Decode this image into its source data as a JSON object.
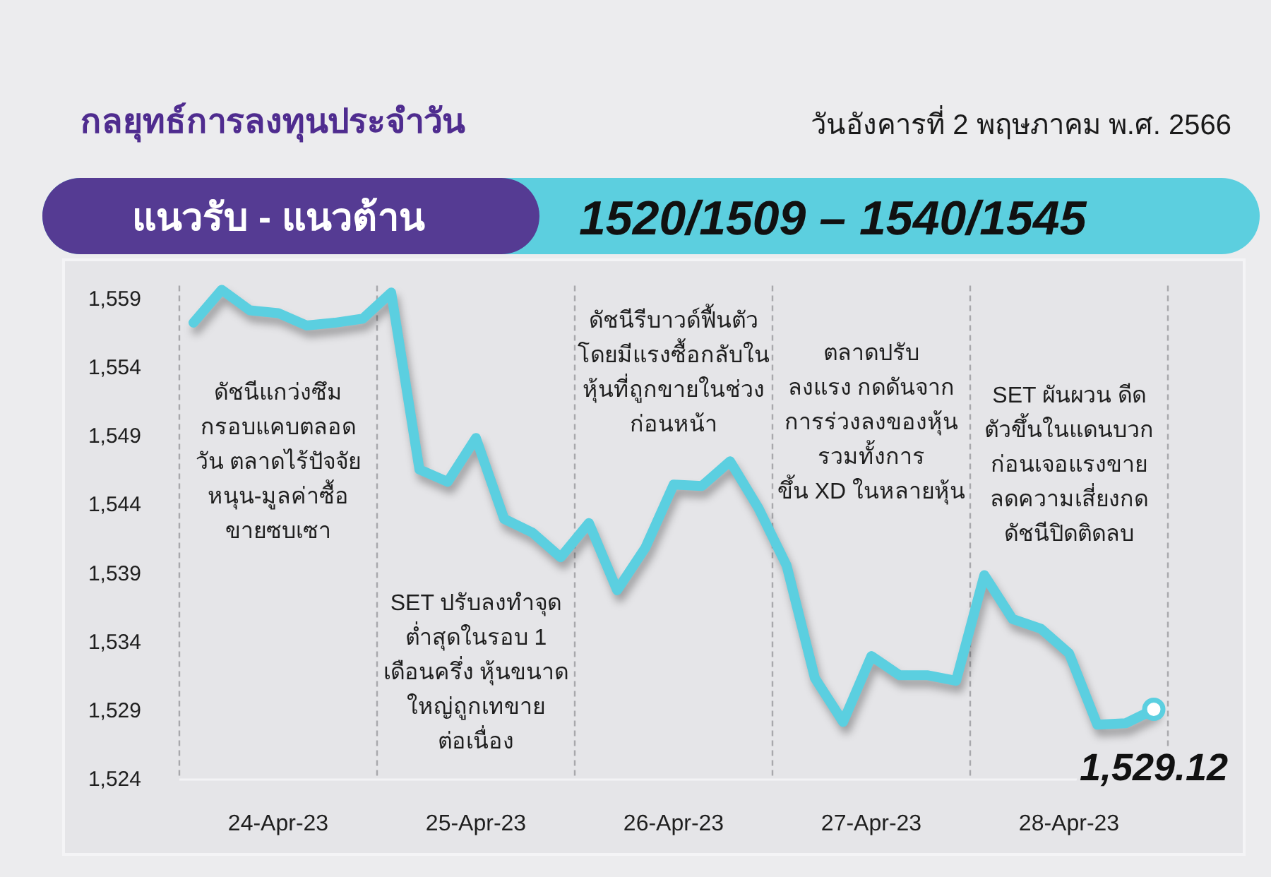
{
  "chart_data": {
    "type": "line",
    "title": "กลยุทธ์การลงทุนประจำวัน",
    "subtitle": "วันอังคารที่ 2 พฤษภาคม พ.ศ. 2566",
    "annotations": [
      "ดัชนีแกว่งซึม\nกรอบแคบตลอด\nวัน ตลาดไร้ปัจจัย\nหนุน-มูลค่าซื้อ\nขายซบเซา",
      "SET ปรับลงทำจุด\nต่ำสุดในรอบ 1\nเดือนครึ่ง หุ้นขนาด\nใหญ่ถูกเทขาย\nต่อเนื่อง",
      "ดัชนีรีบาวด์ฟื้นตัว\nโดยมีแรงซื้อกลับใน\nหุ้นที่ถูกขายในช่วง\nก่อนหน้า",
      "ตลาดปรับ\nลงแรง กดดันจาก\nการร่วงลงของหุ้น\nรวมทั้งการ\nขึ้น XD ในหลายหุ้น",
      "SET ผันผวน ดีด\nตัวขึ้นในแดนบวก\nก่อนเจอแรงขาย\nลดความเสี่ยงกด\nดัชนีปิดติดลบ",
      "แนวรับ - แนวต้าน",
      "1520/1509 – 1540/1545"
    ],
    "categories": [
      null,
      null,
      null,
      "24-Apr-23",
      null,
      null,
      null,
      null,
      null,
      null,
      "25-Apr-23",
      null,
      null,
      null,
      null,
      null,
      null,
      "26-Apr-23",
      null,
      null,
      null,
      null,
      null,
      null,
      "27-Apr-23",
      null,
      null,
      null,
      null,
      null,
      null,
      "28-Apr-23",
      null,
      null,
      null
    ],
    "ylim": [
      1524,
      1560
    ],
    "yticks": [
      {
        "value": 1524,
        "label": "1,524"
      },
      {
        "value": 1529,
        "label": "1,529"
      },
      {
        "value": 1534,
        "label": "1,534"
      },
      {
        "value": 1539,
        "label": "1,539"
      },
      {
        "value": 1544,
        "label": "1,544"
      },
      {
        "value": 1549,
        "label": "1,549"
      },
      {
        "value": 1554,
        "label": "1,554"
      },
      {
        "value": 1559,
        "label": "1,559"
      }
    ],
    "grid": "x",
    "series": [
      {
        "color": "#5bcfe0",
        "values": [
          1557.3,
          1559.7,
          1558.2,
          1558.0,
          1557.1,
          1557.3,
          1557.6,
          1559.5,
          1546.6,
          1545.7,
          1548.9,
          1543.0,
          1542.0,
          1540.2,
          1542.7,
          1537.8,
          1540.9,
          1545.5,
          1545.4,
          1547.2,
          1543.8,
          1539.6,
          1531.4,
          1528.2,
          1533.0,
          1531.6,
          1531.6,
          1531.2,
          1538.9,
          1535.7,
          1535.0,
          1533.2,
          1528.0,
          1528.1,
          1529.1
        ]
      },
      {
        "type": "scatter",
        "color": "#5bcfe0",
        "marker": "circle",
        "values": [
          null,
          null,
          null,
          null,
          null,
          null,
          null,
          null,
          null,
          null,
          null,
          null,
          null,
          null,
          null,
          null,
          null,
          null,
          null,
          null,
          null,
          null,
          null,
          null,
          null,
          null,
          null,
          null,
          null,
          null,
          null,
          null,
          null,
          null,
          1529.12
        ],
        "value_labels": [
          null,
          null,
          null,
          null,
          null,
          null,
          null,
          null,
          null,
          null,
          null,
          null,
          null,
          null,
          null,
          null,
          null,
          null,
          null,
          null,
          null,
          null,
          null,
          null,
          null,
          null,
          null,
          null,
          null,
          null,
          null,
          null,
          null,
          null,
          "1,529.12"
        ]
      }
    ]
  }
}
